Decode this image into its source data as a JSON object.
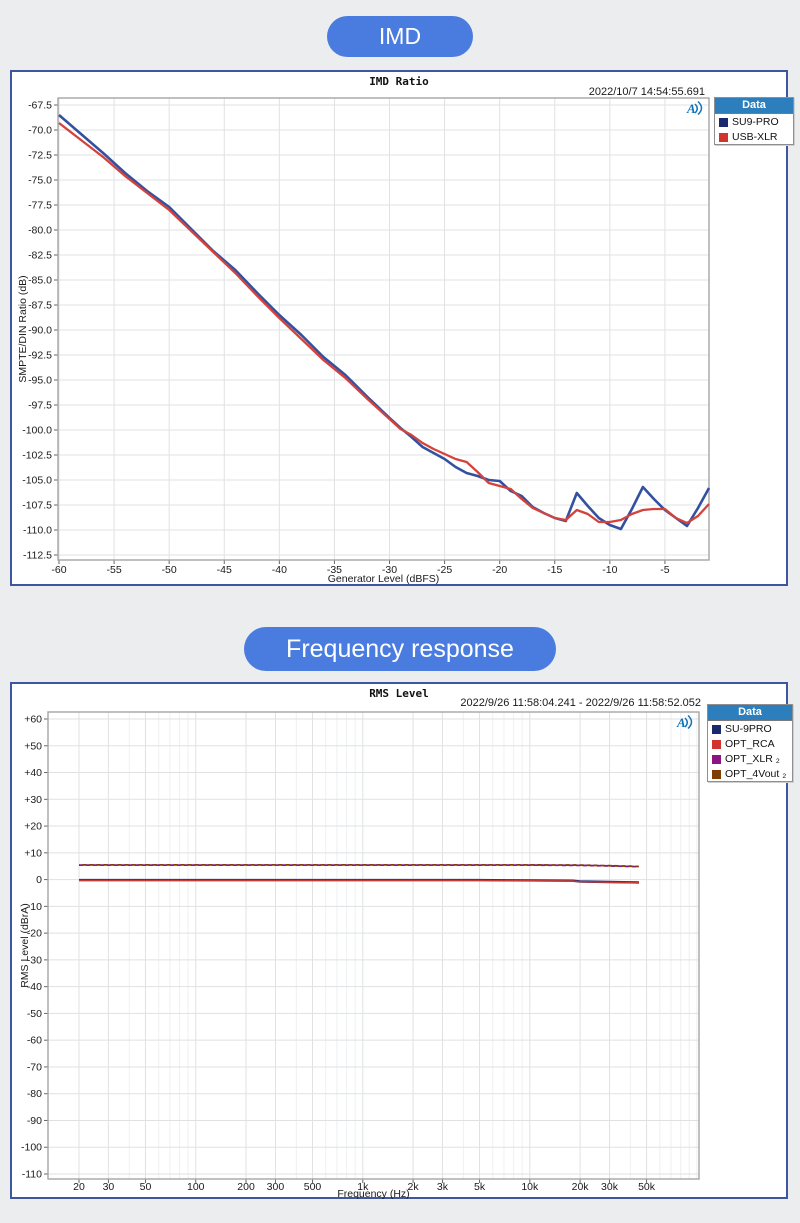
{
  "sections": [
    {
      "label": "IMD"
    },
    {
      "label": "Frequency response"
    }
  ],
  "theme": {
    "badge_bg": "#4a7ce0",
    "panel_border": "#3e56a0",
    "legend_header_bg": "#2c7fbc",
    "grid": "#dfe1e3",
    "grid_minor": "#eef0f2",
    "frame": "#a5a5a5",
    "ap_logo_blue": "#1273b8"
  },
  "chart_data": [
    {
      "type": "line",
      "title": "IMD Ratio",
      "timestamp": "2022/10/7 14:54:55.691",
      "xlabel": "Generator Level (dBFS)",
      "ylabel": "SMPTE/DIN Ratio (dB)",
      "xscale": "linear",
      "xlim": [
        -60,
        -1
      ],
      "ylim": [
        -67.5,
        -112.5
      ],
      "x_ticks": [
        -60,
        -55,
        -50,
        -45,
        -40,
        -35,
        -30,
        -25,
        -20,
        -15,
        -10,
        -5
      ],
      "y_ticks": [
        -67.5,
        -70.0,
        -72.5,
        -75.0,
        -77.5,
        -80.0,
        -82.5,
        -85.0,
        -87.5,
        -90.0,
        -92.5,
        -95.0,
        -97.5,
        -100.0,
        -102.5,
        -105.0,
        -107.5,
        -110.0,
        -112.5
      ],
      "y_tick_decimals": 1,
      "plus_prefix": false,
      "ap_logo": "A",
      "legend": {
        "header": "Data",
        "items": [
          {
            "label": "SU9-PRO",
            "color": "#1b2a6e"
          },
          {
            "label": "USB-XLR",
            "color": "#d0342c"
          }
        ]
      },
      "series": [
        {
          "name": "SU9-PRO",
          "color": "#33519f",
          "width": 2.6,
          "dash": "",
          "points": [
            [
              -60,
              -68.5
            ],
            [
              -58,
              -70.4
            ],
            [
              -56,
              -72.3
            ],
            [
              -54,
              -74.3
            ],
            [
              -52,
              -76.1
            ],
            [
              -50,
              -77.7
            ],
            [
              -48,
              -79.9
            ],
            [
              -46,
              -82.1
            ],
            [
              -44,
              -84.0
            ],
            [
              -42,
              -86.3
            ],
            [
              -40,
              -88.5
            ],
            [
              -38,
              -90.5
            ],
            [
              -36,
              -92.7
            ],
            [
              -34,
              -94.5
            ],
            [
              -32,
              -96.7
            ],
            [
              -30,
              -98.8
            ],
            [
              -29,
              -99.8
            ],
            [
              -28,
              -100.7
            ],
            [
              -27,
              -101.7
            ],
            [
              -26,
              -102.3
            ],
            [
              -25,
              -102.9
            ],
            [
              -24,
              -103.7
            ],
            [
              -23,
              -104.3
            ],
            [
              -22,
              -104.6
            ],
            [
              -21,
              -105.0
            ],
            [
              -20,
              -105.1
            ],
            [
              -19,
              -106.1
            ],
            [
              -18,
              -106.6
            ],
            [
              -17,
              -107.7
            ],
            [
              -16,
              -108.3
            ],
            [
              -15,
              -108.8
            ],
            [
              -14,
              -109.1
            ],
            [
              -13,
              -106.3
            ],
            [
              -12,
              -107.6
            ],
            [
              -11,
              -108.8
            ],
            [
              -10,
              -109.5
            ],
            [
              -9,
              -109.9
            ],
            [
              -8,
              -107.9
            ],
            [
              -7,
              -105.7
            ],
            [
              -6,
              -106.9
            ],
            [
              -5,
              -108.0
            ],
            [
              -4,
              -108.8
            ],
            [
              -3,
              -109.6
            ],
            [
              -2,
              -107.8
            ],
            [
              -1,
              -105.8
            ]
          ]
        },
        {
          "name": "USB-XLR",
          "color": "#d4423c",
          "width": 2.3,
          "dash": "",
          "points": [
            [
              -60,
              -69.3
            ],
            [
              -58,
              -71.0
            ],
            [
              -56,
              -72.7
            ],
            [
              -54,
              -74.6
            ],
            [
              -52,
              -76.3
            ],
            [
              -50,
              -78.0
            ],
            [
              -48,
              -80.1
            ],
            [
              -46,
              -82.2
            ],
            [
              -44,
              -84.3
            ],
            [
              -42,
              -86.6
            ],
            [
              -40,
              -88.8
            ],
            [
              -38,
              -90.9
            ],
            [
              -36,
              -93.0
            ],
            [
              -34,
              -94.8
            ],
            [
              -32,
              -96.9
            ],
            [
              -30,
              -98.9
            ],
            [
              -29,
              -99.9
            ],
            [
              -28,
              -100.5
            ],
            [
              -27,
              -101.3
            ],
            [
              -26,
              -101.9
            ],
            [
              -25,
              -102.4
            ],
            [
              -24,
              -102.9
            ],
            [
              -23,
              -103.2
            ],
            [
              -22,
              -104.2
            ],
            [
              -21,
              -105.3
            ],
            [
              -20,
              -105.6
            ],
            [
              -19,
              -105.9
            ],
            [
              -18,
              -106.9
            ],
            [
              -17,
              -107.8
            ],
            [
              -16,
              -108.3
            ],
            [
              -15,
              -108.8
            ],
            [
              -14,
              -109.0
            ],
            [
              -13,
              -108.0
            ],
            [
              -12,
              -108.4
            ],
            [
              -11,
              -109.2
            ],
            [
              -10,
              -109.2
            ],
            [
              -9,
              -109.0
            ],
            [
              -8,
              -108.4
            ],
            [
              -7,
              -108.0
            ],
            [
              -6,
              -107.9
            ],
            [
              -5,
              -107.9
            ],
            [
              -4,
              -108.8
            ],
            [
              -3,
              -109.3
            ],
            [
              -2,
              -108.6
            ],
            [
              -1,
              -107.4
            ]
          ]
        }
      ]
    },
    {
      "type": "line",
      "title": "RMS Level",
      "timestamp": "2022/9/26 11:58:04.241 -  2022/9/26 11:58:52.052",
      "xlabel": "Frequency (Hz)",
      "ylabel": "RMS Level (dBrA)",
      "xscale": "log",
      "xlim": [
        20,
        103000
      ],
      "ylim": [
        60,
        -110
      ],
      "x_ticks": [
        {
          "v": 20,
          "l": "20"
        },
        {
          "v": 30,
          "l": "30"
        },
        {
          "v": 50,
          "l": "50"
        },
        {
          "v": 100,
          "l": "100"
        },
        {
          "v": 200,
          "l": "200"
        },
        {
          "v": 300,
          "l": "300"
        },
        {
          "v": 500,
          "l": "500"
        },
        {
          "v": 1000,
          "l": "1k"
        },
        {
          "v": 2000,
          "l": "2k"
        },
        {
          "v": 3000,
          "l": "3k"
        },
        {
          "v": 5000,
          "l": "5k"
        },
        {
          "v": 10000,
          "l": "10k"
        },
        {
          "v": 20000,
          "l": "20k"
        },
        {
          "v": 30000,
          "l": "30k"
        },
        {
          "v": 50000,
          "l": "50k"
        }
      ],
      "y_ticks": [
        60,
        50,
        40,
        30,
        20,
        10,
        0,
        -10,
        -20,
        -30,
        -40,
        -50,
        -60,
        -70,
        -80,
        -90,
        -100,
        -110
      ],
      "y_tick_decimals": 0,
      "plus_prefix": true,
      "ap_logo": "A",
      "legend": {
        "header": "Data",
        "items": [
          {
            "label": "SU-9PRO",
            "color": "#1b2a6e"
          },
          {
            "label": "OPT_RCA",
            "color": "#d0342c"
          },
          {
            "label": "OPT_XLR ₂",
            "color": "#8b1583"
          },
          {
            "label": "OPT_4Vout ₂",
            "color": "#7d3f04"
          }
        ]
      },
      "series": [
        {
          "name": "SU-9PRO",
          "color": "#1b2a6e",
          "width": 2.4,
          "dash": "",
          "points": [
            [
              20,
              -0.2
            ],
            [
              100,
              -0.2
            ],
            [
              1000,
              -0.2
            ],
            [
              5000,
              -0.2
            ],
            [
              10000,
              -0.3
            ],
            [
              18000,
              -0.4
            ],
            [
              20000,
              -0.7
            ],
            [
              30000,
              -0.9
            ],
            [
              40000,
              -1.0
            ],
            [
              45000,
              -1.1
            ]
          ]
        },
        {
          "name": "OPT_RCA",
          "color": "#c23b38",
          "width": 1.5,
          "dash": "",
          "points": [
            [
              20,
              -0.3
            ],
            [
              100,
              -0.3
            ],
            [
              1000,
              -0.3
            ],
            [
              5000,
              -0.3
            ],
            [
              10000,
              -0.4
            ],
            [
              18000,
              -0.5
            ],
            [
              20000,
              -0.8
            ],
            [
              30000,
              -1.0
            ],
            [
              40000,
              -1.1
            ],
            [
              45000,
              -1.2
            ]
          ]
        },
        {
          "name": "OPT_XLR ₂",
          "color": "#8b1583",
          "width": 1.8,
          "dash": "4 3",
          "dashoffset": 0,
          "points": [
            [
              20,
              5.4
            ],
            [
              100,
              5.4
            ],
            [
              1000,
              5.4
            ],
            [
              10000,
              5.4
            ],
            [
              20000,
              5.3
            ],
            [
              30000,
              5.1
            ],
            [
              40000,
              4.9
            ],
            [
              45000,
              4.8
            ]
          ]
        },
        {
          "name": "OPT_4Vout ₂",
          "color": "#7d3f04",
          "width": 1.8,
          "dash": "4 3",
          "dashoffset": 3.5,
          "points": [
            [
              20,
              5.5
            ],
            [
              100,
              5.5
            ],
            [
              1000,
              5.5
            ],
            [
              10000,
              5.5
            ],
            [
              20000,
              5.4
            ],
            [
              30000,
              5.2
            ],
            [
              40000,
              5.0
            ],
            [
              45000,
              4.9
            ]
          ]
        }
      ]
    }
  ]
}
